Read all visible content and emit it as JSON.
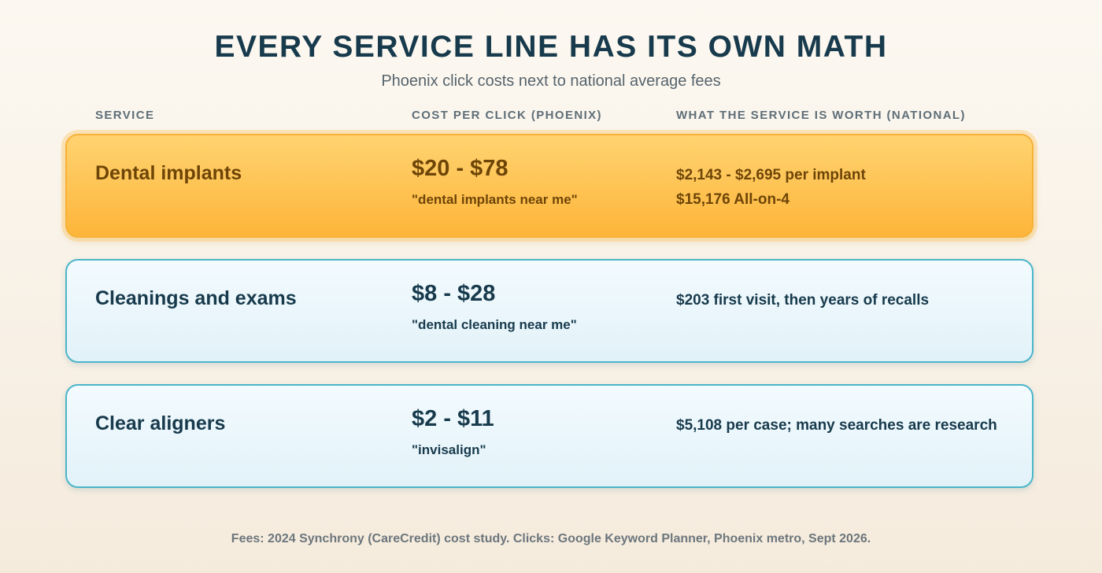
{
  "header": {
    "title": "EVERY SERVICE LINE HAS ITS OWN MATH",
    "subtitle": "Phoenix click costs next to national average fees"
  },
  "columns": {
    "service": "SERVICE",
    "cpc": "COST PER CLICK (PHOENIX)",
    "worth": "WHAT THE SERVICE IS WORTH (NATIONAL)"
  },
  "rows": [
    {
      "service": "Dental implants",
      "cpc": "$20 - $78",
      "keyword": "\"dental implants near me\"",
      "worth": [
        "$2,143 - $2,695 per implant",
        "$15,176 All-on-4"
      ],
      "highlighted": true
    },
    {
      "service": "Cleanings and exams",
      "cpc": "$8 - $28",
      "keyword": "\"dental cleaning near me\"",
      "worth": [
        "$203 first visit, then years of recalls"
      ],
      "highlighted": false
    },
    {
      "service": "Clear aligners",
      "cpc": "$2 - $11",
      "keyword": "\"invisalign\"",
      "worth": [
        "$5,108 per case; many searches are research"
      ],
      "highlighted": false
    }
  ],
  "colors": {
    "highlight_fill": "#fdb53a",
    "highlight_text": "#6e4508",
    "card_border": "#4bb5c9",
    "title_text": "#173a4c"
  },
  "footer": {
    "note": "Fees: 2024 Synchrony (CareCredit) cost study. Clicks: Google Keyword Planner, Phoenix metro, Sept 2026."
  }
}
